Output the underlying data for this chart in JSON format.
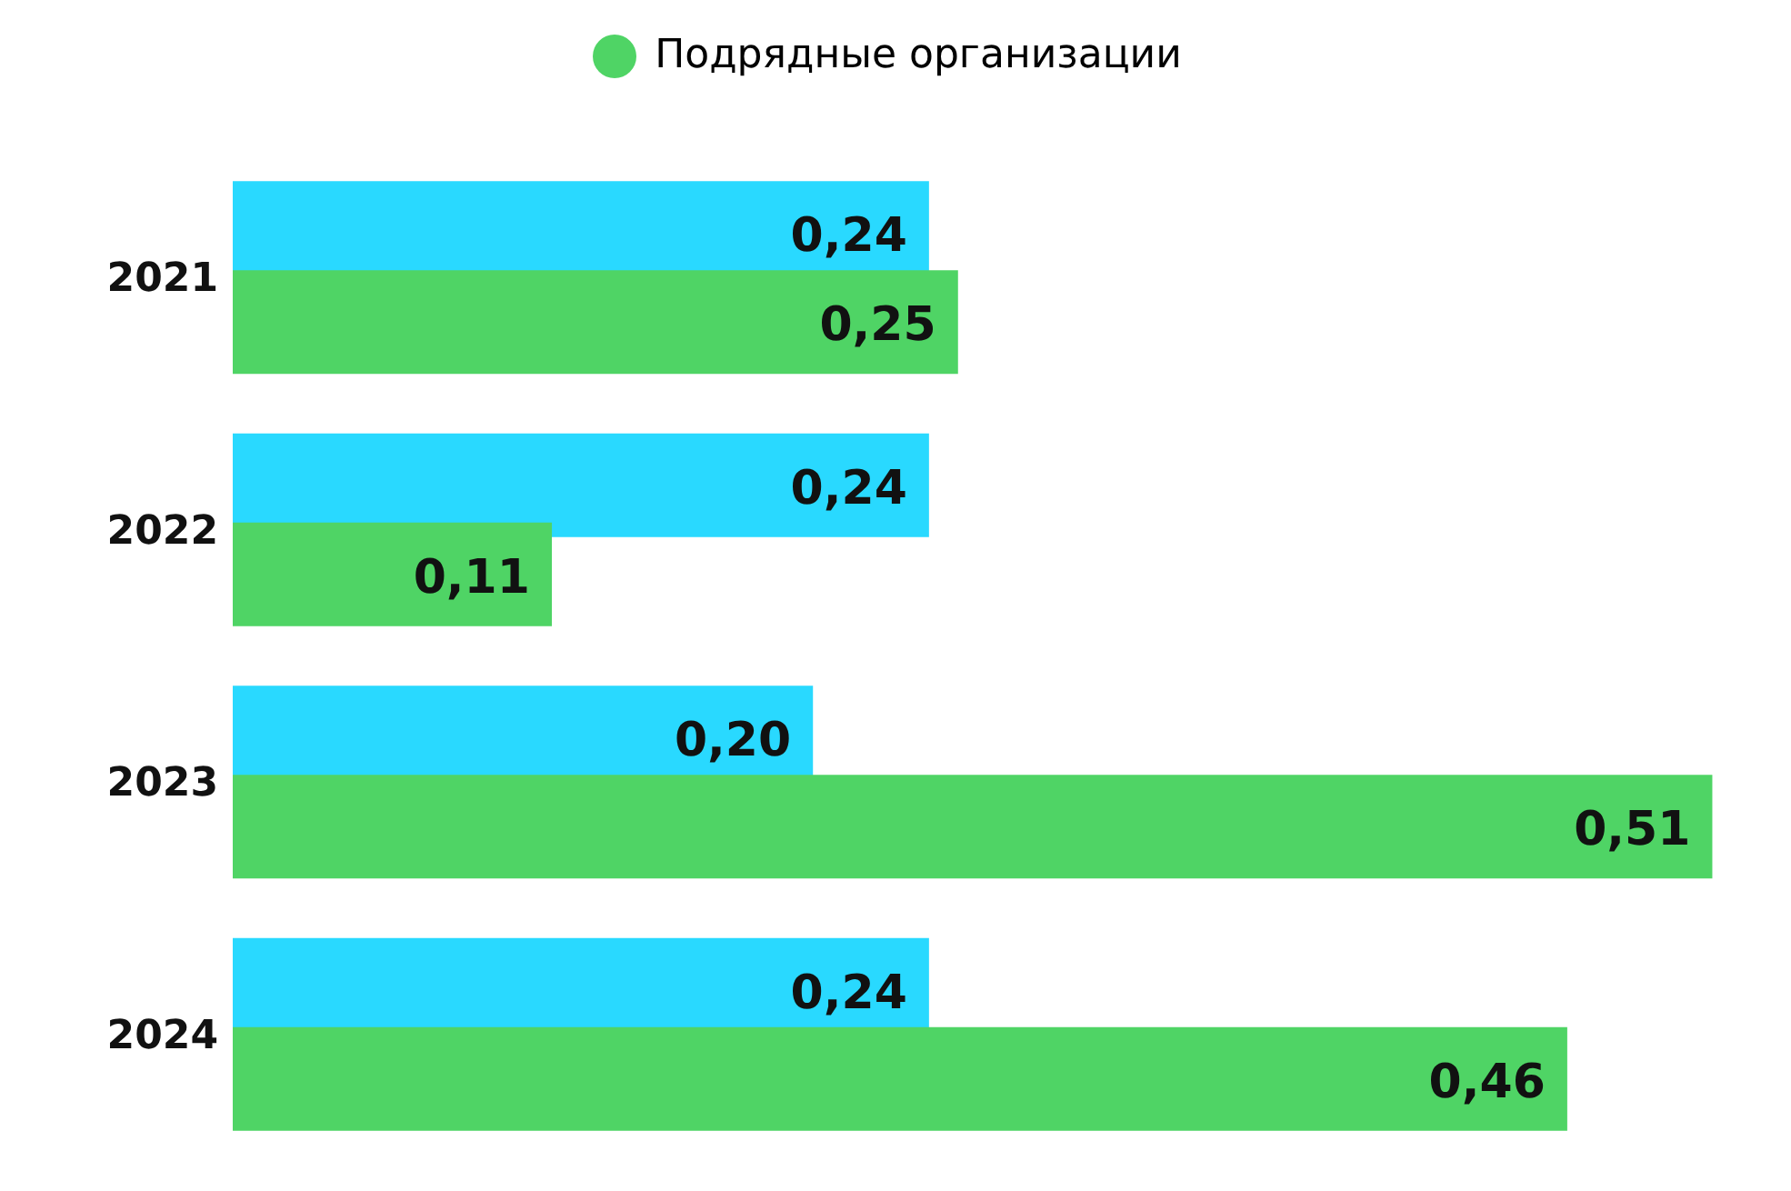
{
  "chart_data": {
    "type": "bar",
    "orientation": "horizontal",
    "categories": [
      "2021",
      "2022",
      "2023",
      "2024"
    ],
    "legend": "top",
    "series": [
      {
        "color": "#29d9ff",
        "values": [
          0.24,
          0.24,
          0.2,
          0.24
        ],
        "value_labels": [
          "0,24",
          "0,24",
          "0,20",
          "0,24"
        ]
      },
      {
        "name": "Подрядные организации",
        "color": "#4fd465",
        "values": [
          0.25,
          0.11,
          0.51,
          0.46
        ],
        "value_labels": [
          "0,25",
          "0,11",
          "0,51",
          "0,46"
        ]
      }
    ]
  }
}
